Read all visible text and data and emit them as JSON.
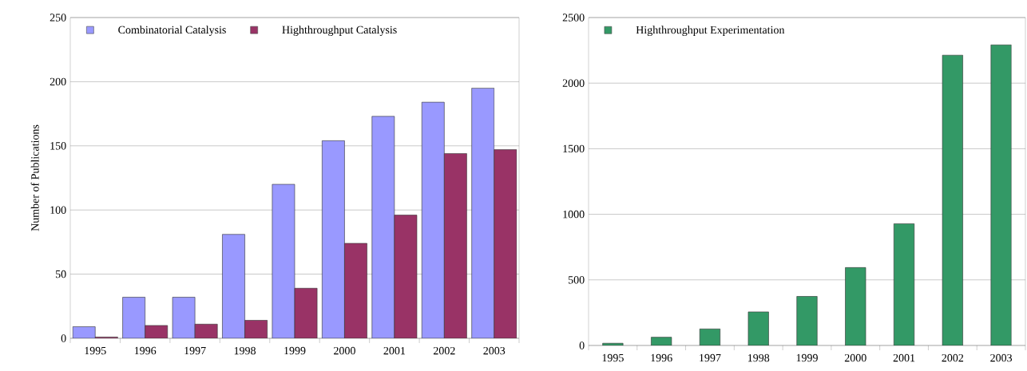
{
  "chart_data": [
    {
      "type": "bar",
      "ylabel": "Number of Publications",
      "categories": [
        "1995",
        "1996",
        "1997",
        "1998",
        "1999",
        "2000",
        "2001",
        "2002",
        "2003"
      ],
      "series": [
        {
          "name": "Combinatorial Catalysis",
          "color": "#9999ff",
          "values": [
            9,
            32,
            32,
            81,
            120,
            154,
            173,
            184,
            195
          ]
        },
        {
          "name": "Highthroughput Catalysis",
          "color": "#993366",
          "values": [
            1,
            10,
            11,
            14,
            39,
            74,
            96,
            144,
            147
          ]
        }
      ],
      "ylim": [
        0,
        250
      ],
      "yticks": [
        0,
        50,
        100,
        150,
        200,
        250
      ],
      "grid": "y",
      "legend": "top left"
    },
    {
      "type": "bar",
      "categories": [
        "1995",
        "1996",
        "1997",
        "1998",
        "1999",
        "2000",
        "2001",
        "2002",
        "2003"
      ],
      "series": [
        {
          "name": "Highthroughput Experimentation",
          "color": "#339966",
          "values": [
            17,
            63,
            126,
            256,
            374,
            594,
            928,
            2213,
            2292
          ]
        }
      ],
      "ylim": [
        0,
        2500
      ],
      "yticks": [
        0,
        500,
        1000,
        1500,
        2000,
        2500
      ],
      "grid": "y",
      "legend": "top left"
    }
  ]
}
